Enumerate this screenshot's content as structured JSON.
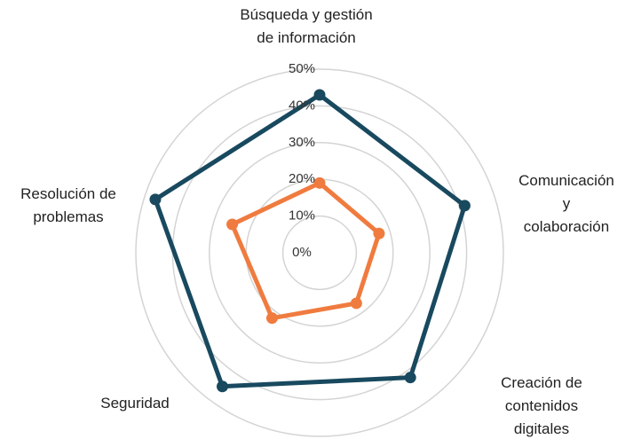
{
  "chart_data": {
    "type": "radar",
    "categories": [
      "Búsqueda y gestión\nde información",
      "Comunicación y\ncolaboración",
      "Creación de contenidos\ndigitales",
      "Seguridad",
      "Resolución de\nproblemas"
    ],
    "series": [
      {
        "color": "#18495f",
        "values": [
          43,
          41.5,
          42,
          45,
          47
        ]
      },
      {
        "color": "#f07b3f",
        "values": [
          19,
          17,
          17,
          22,
          25
        ]
      }
    ],
    "rlim": [
      0,
      50
    ],
    "rticks": [
      {
        "value": 0,
        "label": "0%"
      },
      {
        "value": 10,
        "label": "10%"
      },
      {
        "value": 20,
        "label": "20%"
      },
      {
        "value": 30,
        "label": "30%"
      },
      {
        "value": 40,
        "label": "40%"
      },
      {
        "value": 50,
        "label": "50%"
      }
    ],
    "grid": true
  }
}
